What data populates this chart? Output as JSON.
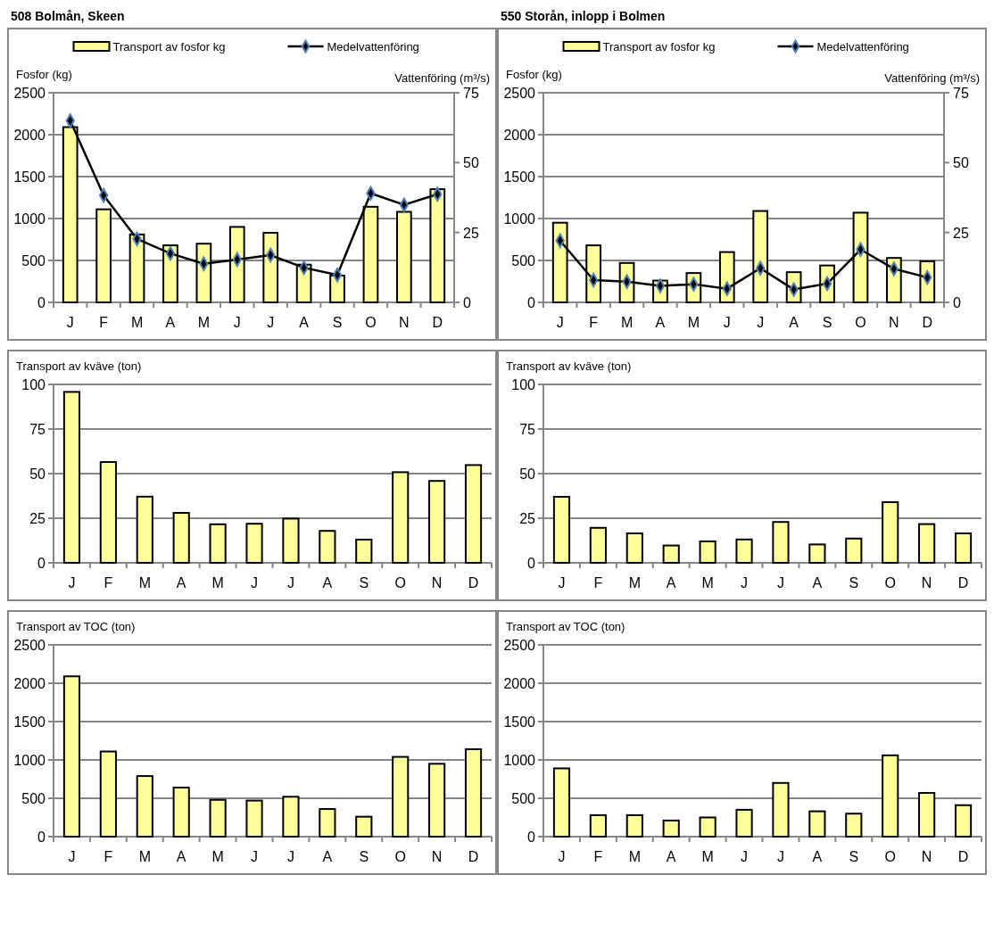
{
  "chart_data": [
    {
      "type": "bar",
      "title": "508 Bolmån, Skeen",
      "ylabel": "Fosfor (kg)",
      "y2label": "Vattenföring (m³/s)",
      "categories": [
        "J",
        "F",
        "M",
        "A",
        "M",
        "J",
        "J",
        "A",
        "S",
        "O",
        "N",
        "D"
      ],
      "series": [
        {
          "name": "Transport av fosfor kg",
          "type": "bar",
          "color": "#ffff99",
          "values": [
            2090,
            1110,
            810,
            680,
            700,
            900,
            830,
            450,
            320,
            1140,
            1080,
            1350
          ]
        },
        {
          "name": "Medelvattenföring",
          "type": "line",
          "axis": "y2",
          "color": "#000000",
          "values": [
            65,
            38.3,
            22.7,
            17.5,
            13.8,
            15.3,
            16.9,
            12.4,
            9.8,
            39,
            34.9,
            38.7
          ]
        }
      ],
      "ylim": [
        0,
        2500
      ],
      "yticks": [
        0,
        500,
        1000,
        1500,
        2000,
        2500
      ],
      "y2lim": [
        0,
        75
      ],
      "y2ticks": [
        0,
        25,
        50,
        75
      ],
      "grid": "y",
      "legend": "top",
      "marker": "diamond"
    },
    {
      "type": "bar",
      "title": "550 Storån, inlopp i Bolmen",
      "ylabel": "Fosfor (kg)",
      "y2label": "Vattenföring (m³/s)",
      "categories": [
        "J",
        "F",
        "M",
        "A",
        "M",
        "J",
        "J",
        "A",
        "S",
        "O",
        "N",
        "D"
      ],
      "series": [
        {
          "name": "Transport av fosfor kg",
          "type": "bar",
          "color": "#ffff99",
          "values": [
            950,
            680,
            470,
            260,
            350,
            600,
            1090,
            360,
            440,
            1070,
            530,
            490
          ]
        },
        {
          "name": "Medelvattenföring",
          "type": "line",
          "axis": "y2",
          "color": "#000000",
          "values": [
            22.1,
            8.0,
            7.4,
            5.9,
            6.5,
            4.9,
            12.2,
            4.6,
            6.7,
            18.9,
            12.0,
            8.9
          ]
        }
      ],
      "ylim": [
        0,
        2500
      ],
      "yticks": [
        0,
        500,
        1000,
        1500,
        2000,
        2500
      ],
      "y2lim": [
        0,
        75
      ],
      "y2ticks": [
        0,
        25,
        50,
        75
      ],
      "grid": "y",
      "legend": "top",
      "marker": "diamond"
    },
    {
      "type": "bar",
      "ylabel": "Transport av kväve (ton)",
      "categories": [
        "J",
        "F",
        "M",
        "A",
        "M",
        "J",
        "J",
        "A",
        "S",
        "O",
        "N",
        "D"
      ],
      "color": "#ffff99",
      "values": [
        95.8,
        56.5,
        37.1,
        28,
        21.6,
        21.9,
        24.8,
        17.9,
        13,
        50.8,
        45.9,
        54.8
      ],
      "ylim": [
        0,
        100
      ],
      "yticks": [
        0,
        25,
        50,
        75,
        100
      ],
      "grid": "y"
    },
    {
      "type": "bar",
      "ylabel": "Transport av kväve (ton)",
      "categories": [
        "J",
        "F",
        "M",
        "A",
        "M",
        "J",
        "J",
        "A",
        "S",
        "O",
        "N",
        "D"
      ],
      "color": "#ffff99",
      "values": [
        37,
        19.6,
        16.5,
        9.7,
        12,
        13.1,
        22.9,
        10.3,
        13.6,
        34,
        21.7,
        16.5
      ],
      "ylim": [
        0,
        100
      ],
      "yticks": [
        0,
        25,
        50,
        75,
        100
      ],
      "grid": "y"
    },
    {
      "type": "bar",
      "ylabel": "Transport av TOC (ton)",
      "categories": [
        "J",
        "F",
        "M",
        "A",
        "M",
        "J",
        "J",
        "A",
        "S",
        "O",
        "N",
        "D"
      ],
      "color": "#ffff99",
      "values": [
        2090,
        1110,
        790,
        640,
        480,
        470,
        520,
        360,
        260,
        1040,
        950,
        1140
      ],
      "ylim": [
        0,
        2500
      ],
      "yticks": [
        0,
        500,
        1000,
        1500,
        2000,
        2500
      ],
      "grid": "y"
    },
    {
      "type": "bar",
      "ylabel": "Transport av TOC (ton)",
      "categories": [
        "J",
        "F",
        "M",
        "A",
        "M",
        "J",
        "J",
        "A",
        "S",
        "O",
        "N",
        "D"
      ],
      "color": "#ffff99",
      "values": [
        890,
        280,
        280,
        210,
        250,
        350,
        700,
        330,
        300,
        1060,
        570,
        410
      ],
      "ylim": [
        0,
        2500
      ],
      "yticks": [
        0,
        500,
        1000,
        1500,
        2000,
        2500
      ],
      "grid": "y"
    }
  ]
}
